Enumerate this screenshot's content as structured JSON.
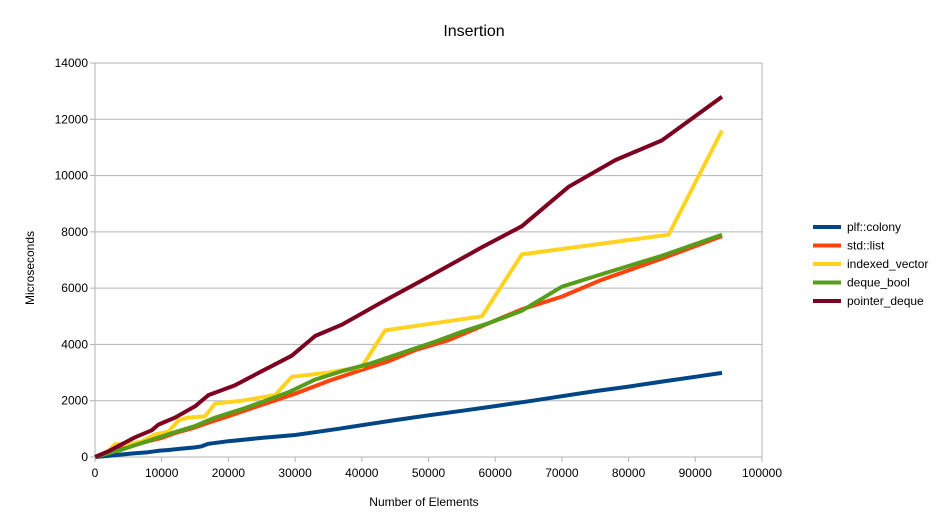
{
  "chart_data": {
    "type": "line",
    "title": "Insertion",
    "xlabel": "Number of Elements",
    "ylabel": "Microseconds",
    "xlim": [
      0,
      100000
    ],
    "ylim": [
      0,
      14000
    ],
    "x_ticks": [
      0,
      10000,
      20000,
      30000,
      40000,
      50000,
      60000,
      70000,
      80000,
      90000,
      100000
    ],
    "y_ticks": [
      0,
      2000,
      4000,
      6000,
      8000,
      10000,
      12000,
      14000
    ],
    "grid": {
      "horizontal": true,
      "vertical": false
    },
    "legend_position": "right",
    "series": [
      {
        "name": "plf::colony",
        "color": "#004586",
        "points": [
          [
            0,
            0
          ],
          [
            2000,
            40
          ],
          [
            4000,
            90
          ],
          [
            6000,
            130
          ],
          [
            8000,
            170
          ],
          [
            9500,
            220
          ],
          [
            11000,
            250
          ],
          [
            13000,
            300
          ],
          [
            15000,
            340
          ],
          [
            16000,
            380
          ],
          [
            17000,
            470
          ],
          [
            20000,
            560
          ],
          [
            25000,
            680
          ],
          [
            30000,
            780
          ],
          [
            33000,
            880
          ],
          [
            37000,
            1020
          ],
          [
            40000,
            1130
          ],
          [
            45000,
            1310
          ],
          [
            50000,
            1480
          ],
          [
            55000,
            1640
          ],
          [
            60000,
            1810
          ],
          [
            65000,
            1980
          ],
          [
            70000,
            2160
          ],
          [
            75000,
            2340
          ],
          [
            80000,
            2500
          ],
          [
            85000,
            2680
          ],
          [
            90000,
            2850
          ],
          [
            94000,
            2990
          ]
        ]
      },
      {
        "name": "std::list",
        "color": "#ff420e",
        "points": [
          [
            0,
            0
          ],
          [
            2000,
            150
          ],
          [
            4000,
            300
          ],
          [
            6000,
            440
          ],
          [
            8000,
            560
          ],
          [
            10000,
            680
          ],
          [
            12000,
            850
          ],
          [
            15000,
            1050
          ],
          [
            17000,
            1220
          ],
          [
            20000,
            1450
          ],
          [
            25000,
            1850
          ],
          [
            30000,
            2250
          ],
          [
            35000,
            2700
          ],
          [
            40000,
            3100
          ],
          [
            44000,
            3400
          ],
          [
            48000,
            3800
          ],
          [
            53000,
            4150
          ],
          [
            58000,
            4650
          ],
          [
            64000,
            5250
          ],
          [
            70000,
            5700
          ],
          [
            76000,
            6300
          ],
          [
            85000,
            7050
          ],
          [
            94000,
            7850
          ]
        ]
      },
      {
        "name": "indexed_vector",
        "color": "#ffd320",
        "points": [
          [
            0,
            0
          ],
          [
            2000,
            200
          ],
          [
            3000,
            450
          ],
          [
            5000,
            450
          ],
          [
            7000,
            550
          ],
          [
            9000,
            800
          ],
          [
            11000,
            900
          ],
          [
            12500,
            1300
          ],
          [
            14000,
            1400
          ],
          [
            16500,
            1450
          ],
          [
            18000,
            1900
          ],
          [
            22000,
            2000
          ],
          [
            27000,
            2200
          ],
          [
            29500,
            2850
          ],
          [
            35000,
            3000
          ],
          [
            40000,
            3200
          ],
          [
            43500,
            4500
          ],
          [
            58000,
            5000
          ],
          [
            64000,
            7200
          ],
          [
            86000,
            7900
          ],
          [
            94000,
            11600
          ]
        ]
      },
      {
        "name": "deque_bool",
        "color": "#579d1c",
        "points": [
          [
            0,
            0
          ],
          [
            2000,
            130
          ],
          [
            4000,
            260
          ],
          [
            6000,
            420
          ],
          [
            9000,
            650
          ],
          [
            12000,
            880
          ],
          [
            15000,
            1100
          ],
          [
            18000,
            1400
          ],
          [
            22000,
            1700
          ],
          [
            25000,
            1950
          ],
          [
            29000,
            2300
          ],
          [
            33000,
            2750
          ],
          [
            37000,
            3050
          ],
          [
            41000,
            3300
          ],
          [
            46000,
            3700
          ],
          [
            51000,
            4100
          ],
          [
            55000,
            4450
          ],
          [
            59000,
            4750
          ],
          [
            64000,
            5200
          ],
          [
            70000,
            6050
          ],
          [
            76000,
            6500
          ],
          [
            85000,
            7150
          ],
          [
            94000,
            7900
          ]
        ]
      },
      {
        "name": "pointer_deque",
        "color": "#7e0021",
        "points": [
          [
            0,
            0
          ],
          [
            2000,
            200
          ],
          [
            4000,
            450
          ],
          [
            6000,
            700
          ],
          [
            8500,
            950
          ],
          [
            9500,
            1150
          ],
          [
            12000,
            1400
          ],
          [
            15000,
            1800
          ],
          [
            17000,
            2200
          ],
          [
            21000,
            2550
          ],
          [
            25000,
            3050
          ],
          [
            29500,
            3600
          ],
          [
            33000,
            4300
          ],
          [
            37000,
            4700
          ],
          [
            43000,
            5500
          ],
          [
            50000,
            6400
          ],
          [
            58000,
            7450
          ],
          [
            64000,
            8200
          ],
          [
            71000,
            9600
          ],
          [
            78000,
            10550
          ],
          [
            85000,
            11250
          ],
          [
            94000,
            12800
          ]
        ]
      }
    ]
  }
}
